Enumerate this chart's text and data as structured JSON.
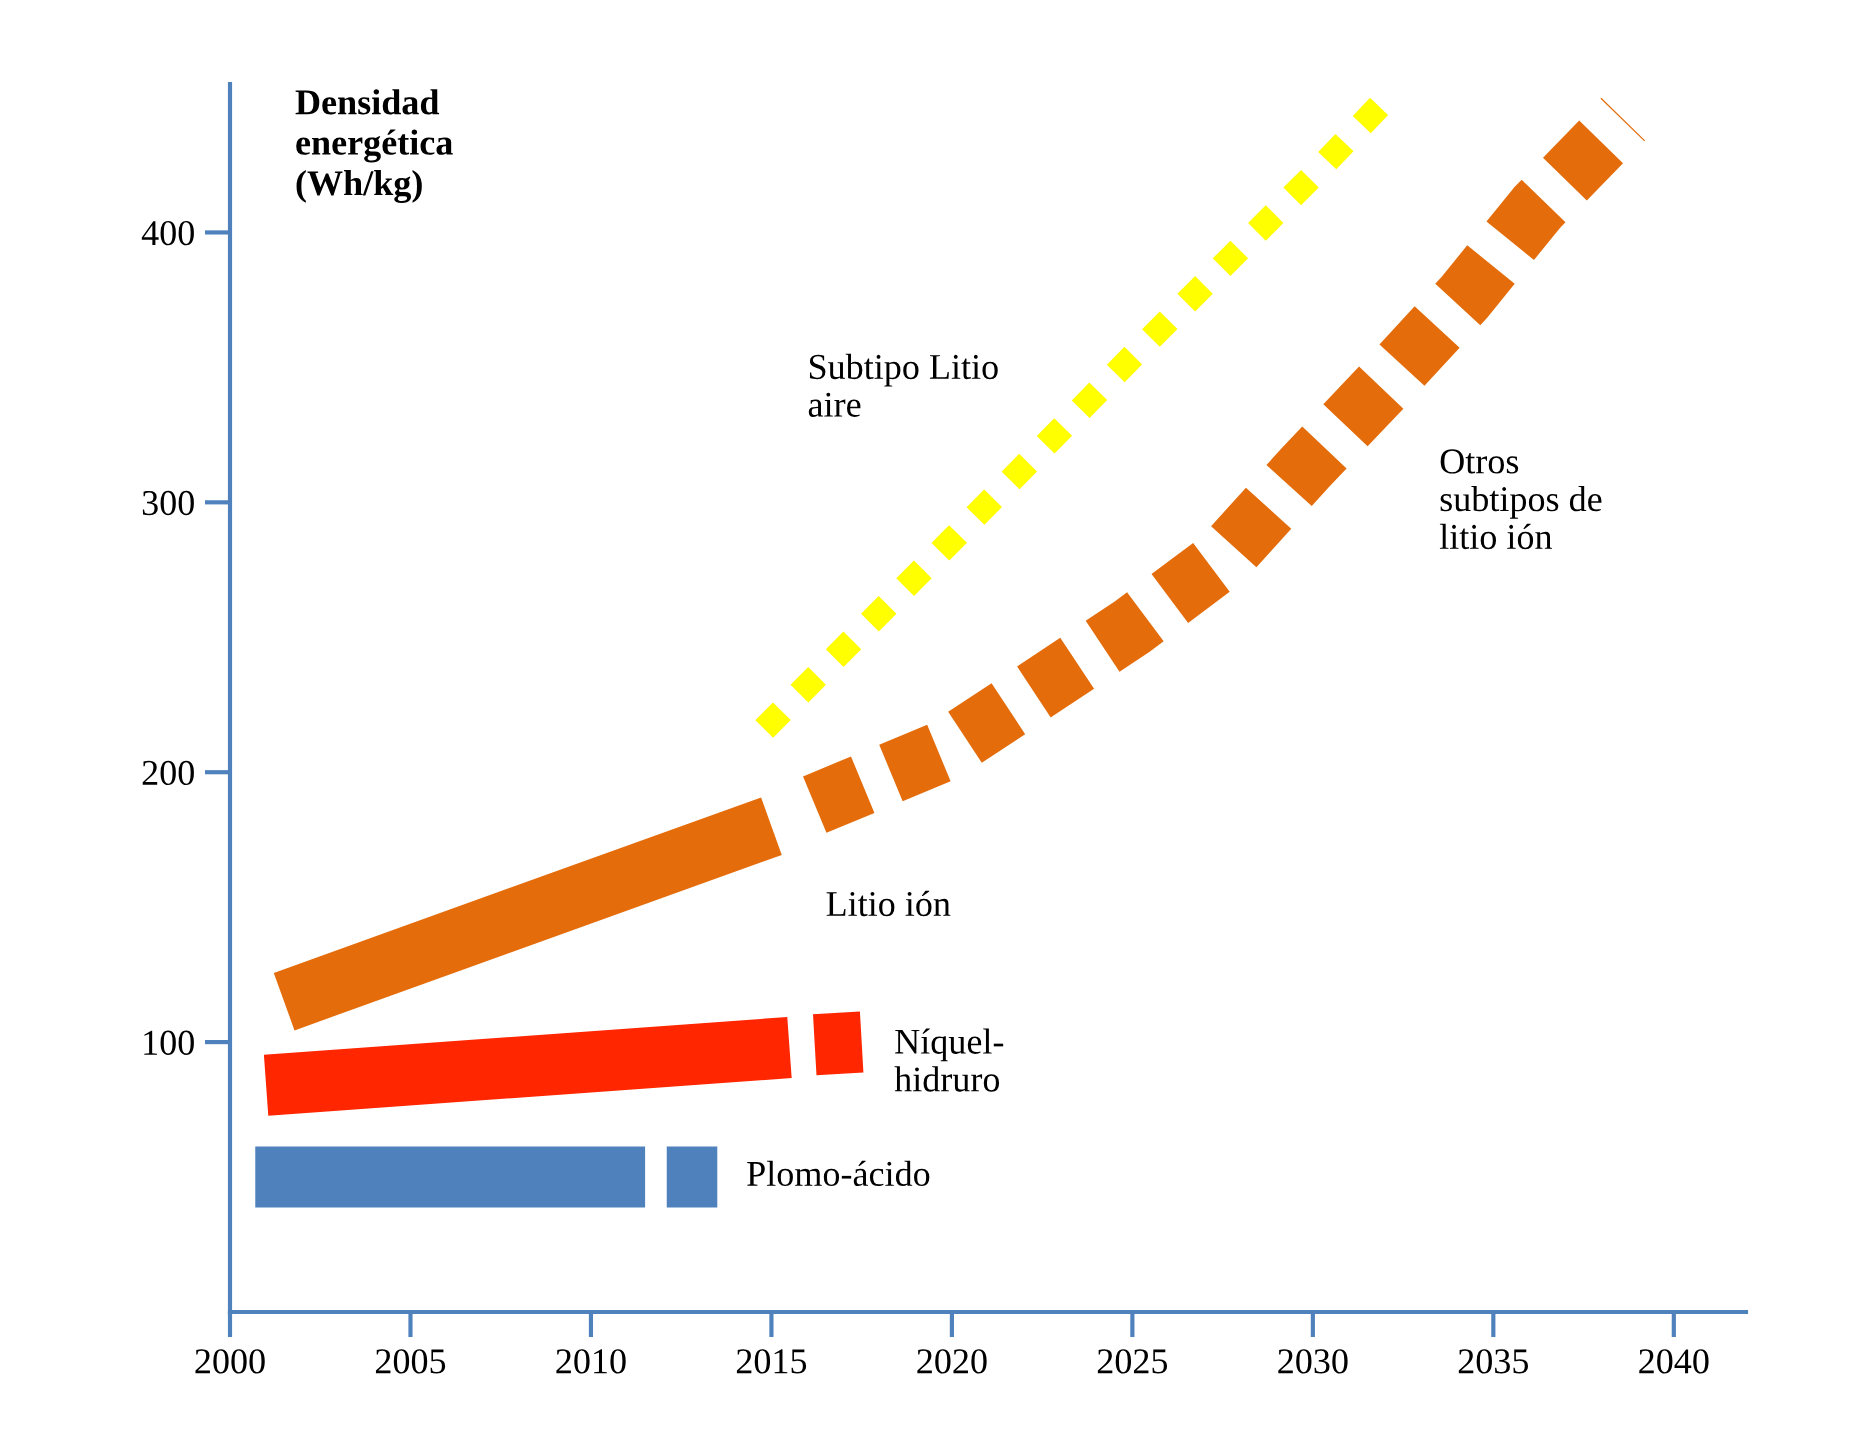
{
  "chart_data": {
    "type": "line",
    "ylabel": "Densidad\nenergética\n(Wh/kg)",
    "xlim": [
      2000,
      2042
    ],
    "ylim": [
      0,
      455
    ],
    "xticks": [
      2000,
      2005,
      2010,
      2015,
      2020,
      2025,
      2030,
      2035,
      2040
    ],
    "yticks": [
      100,
      200,
      300,
      400
    ],
    "grid": false,
    "legend": false,
    "series": [
      {
        "name": "Plomo-ácido",
        "color": "#4f81bd",
        "line_style": "solid",
        "x": [
          2000.7,
          2011.5,
          2011.8,
          2012.1,
          2013.5
        ],
        "values": [
          50,
          50,
          null,
          50,
          50
        ]
      },
      {
        "name": "Níquel-\nhidruro",
        "color": "#ff2600",
        "line_style": "solid",
        "x": [
          2001,
          2015.5,
          2015.8,
          2016.2,
          2017.5
        ],
        "values": [
          84,
          98,
          null,
          99,
          100
        ]
      },
      {
        "name": "Litio ión",
        "color": "#e46c0a",
        "line_style": "solid",
        "x": [
          2001.5,
          2015
        ],
        "values": [
          115,
          180
        ]
      },
      {
        "name": "Otros\nsubtipos de\nlitio ión",
        "color": "#e46c0a",
        "line_style": "dashed",
        "x": [
          2016.2,
          2019.8,
          2022.3,
          2025,
          2027.5,
          2029.8,
          2032,
          2034.2,
          2036.2,
          2038.6
        ],
        "values": [
          188,
          208,
          230,
          254,
          279,
          313,
          344,
          376,
          409,
          442
        ]
      },
      {
        "name": "Subtipo Litio\naire",
        "color": "#ffff00",
        "line_style": "dotted",
        "x": [
          2014.8,
          2020,
          2025,
          2030,
          2032
        ],
        "values": [
          216,
          286,
          354,
          421,
          449
        ]
      }
    ]
  }
}
